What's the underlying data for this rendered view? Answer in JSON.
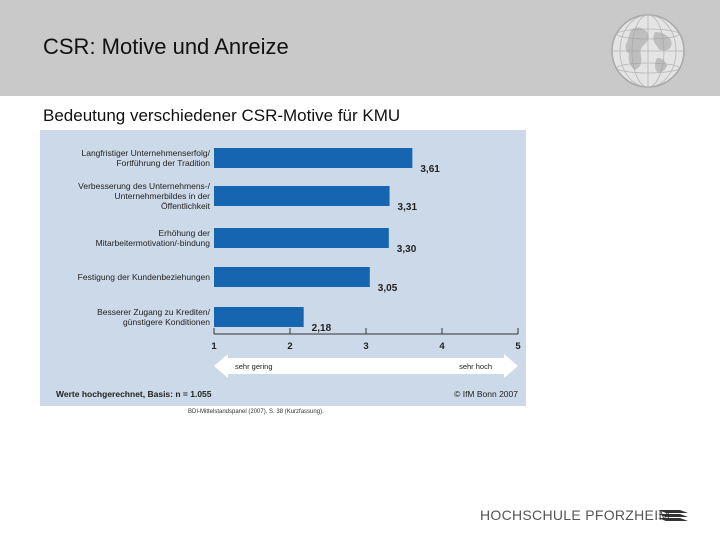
{
  "slide": {
    "title": "CSR: Motive und Anreize",
    "subtitle": "Bedeutung verschiedener CSR-Motive für KMU",
    "source": "BDI-Mittelstandspanel (2007), S. 38 (Kurzfassung).",
    "logo": "HOCHSCHULE PFORZHEIM"
  },
  "chart_data": {
    "type": "bar",
    "orientation": "horizontal",
    "categories": [
      [
        "Langfristiger Unternehmenserfolg/",
        "Fortführung der Tradition"
      ],
      [
        "Verbesserung des Unternehmens-/",
        "Unternehmerbildes in der",
        "Öffentlichkeit"
      ],
      [
        "Erhöhung der",
        "Mitarbeitermotivation/-bindung"
      ],
      [
        "Festigung der Kundenbeziehungen"
      ],
      [
        "Besserer Zugang zu Krediten/",
        "günstigere Konditionen"
      ]
    ],
    "values": [
      3.61,
      3.31,
      3.3,
      3.05,
      2.18
    ],
    "value_labels": [
      "3,61",
      "3,31",
      "3,30",
      "3,05",
      "2,18"
    ],
    "xlim": [
      1,
      5
    ],
    "xticks": [
      1,
      2,
      3,
      4,
      5
    ],
    "scale_low_label": "sehr gering",
    "scale_high_label": "sehr hoch",
    "footnote": "Werte hochgerechnet, Basis: n = 1.055",
    "copyright": "© IfM Bonn 2007",
    "colors": {
      "bar": "#1565b0",
      "background": "#ccd9e8",
      "arrow": "#ffffff"
    }
  }
}
